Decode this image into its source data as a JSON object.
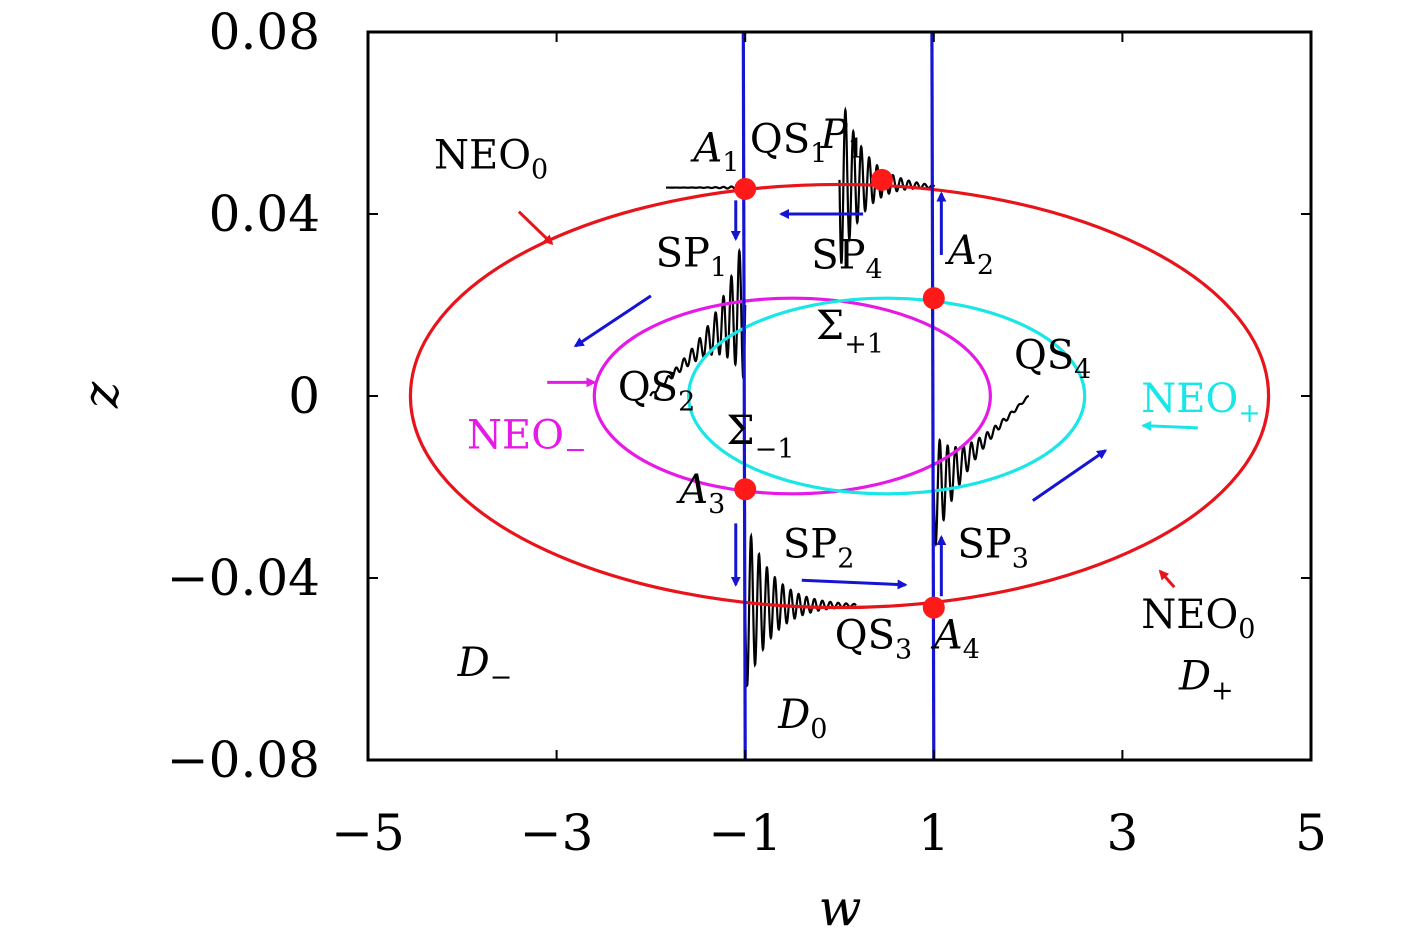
{
  "chart_data": {
    "type": "line",
    "xlabel": "w",
    "ylabel": "z",
    "xlim": [
      -5,
      5
    ],
    "ylim": [
      -0.08,
      0.08
    ],
    "xticks": [
      "−5",
      "−3",
      "−1",
      "1",
      "3",
      "5"
    ],
    "xtick_values": [
      -5,
      -3,
      -1,
      1,
      3,
      5
    ],
    "yticks": [
      "0.08",
      "0.04",
      "0",
      "−0.04",
      "−0.08"
    ],
    "ytick_values": [
      0.08,
      0.04,
      0,
      -0.04,
      -0.08
    ],
    "grid": false,
    "colors": {
      "neo0": "#e8141c",
      "neo_minus": "#e61ae6",
      "neo_plus": "#19e6e6",
      "switching": "#1414d2",
      "arrow": "#1414d2",
      "trajectory": "#000000",
      "point": "#ff1a1a"
    },
    "ellipses": [
      {
        "id": "NEO0",
        "cx": 0,
        "cy": 0,
        "rx": 4.55,
        "ry": 0.0465,
        "color": "#e8141c"
      },
      {
        "id": "NEO-",
        "cx": -0.5,
        "cy": 0,
        "rx": 2.1,
        "ry": 0.0215,
        "color": "#e61ae6"
      },
      {
        "id": "NEO+",
        "cx": 0.5,
        "cy": 0,
        "rx": 2.1,
        "ry": 0.0215,
        "color": "#19e6e6"
      }
    ],
    "switching_lines": [
      {
        "x_top": -1.02,
        "x_bottom": -1.0
      },
      {
        "x_top": 0.98,
        "x_bottom": 1.0
      }
    ],
    "points": [
      {
        "name": "A1",
        "w": -1.0,
        "z": 0.0455
      },
      {
        "name": "P1",
        "w": 0.45,
        "z": 0.0475
      },
      {
        "name": "A2",
        "w": 1.0,
        "z": 0.0215
      },
      {
        "name": "A3",
        "w": -1.0,
        "z": -0.0205
      },
      {
        "name": "A4",
        "w": 1.0,
        "z": -0.0465
      }
    ],
    "oscillations": [
      {
        "x0": -1.0,
        "dir": -1,
        "zs": 0.0458,
        "ze": 0.0458,
        "amp": 0.0005,
        "cycles": 10
      },
      {
        "x0": 0.0,
        "dir": 1,
        "zs": 0.0475,
        "ze": 0.046,
        "amp": 0.02,
        "cycles": 12
      },
      {
        "x0": -1.0,
        "dir": -1,
        "zs": 0.02,
        "ze": 0.0,
        "amp": 0.017,
        "cycles": 12
      },
      {
        "x0": 1.0,
        "dir": 1,
        "zs": -0.021,
        "ze": 0.0,
        "amp": 0.013,
        "cycles": 12
      },
      {
        "x0": -1.0,
        "dir": 1,
        "zs": -0.046,
        "ze": -0.046,
        "amp": 0.019,
        "cycles": 14
      }
    ],
    "arrows": [
      {
        "color": "#1414d2",
        "from": [
          -1.1,
          0.043
        ],
        "to": [
          -1.1,
          0.0345
        ]
      },
      {
        "color": "#1414d2",
        "from": [
          0.25,
          0.04
        ],
        "to": [
          -0.62,
          0.04
        ]
      },
      {
        "color": "#1414d2",
        "from": [
          1.08,
          0.031
        ],
        "to": [
          1.08,
          0.0445
        ]
      },
      {
        "color": "#1414d2",
        "from": [
          -2.0,
          0.022
        ],
        "to": [
          -2.8,
          0.011
        ]
      },
      {
        "color": "#1414d2",
        "from": [
          -1.1,
          -0.028
        ],
        "to": [
          -1.1,
          -0.0415
        ]
      },
      {
        "color": "#1414d2",
        "from": [
          -0.4,
          -0.0405
        ],
        "to": [
          0.7,
          -0.0415
        ]
      },
      {
        "color": "#1414d2",
        "from": [
          1.08,
          -0.044
        ],
        "to": [
          1.08,
          -0.031
        ]
      },
      {
        "color": "#1414d2",
        "from": [
          2.05,
          -0.023
        ],
        "to": [
          2.82,
          -0.012
        ]
      },
      {
        "color": "#e61ae6",
        "from": [
          -3.1,
          0.003
        ],
        "to": [
          -2.6,
          0.003
        ]
      },
      {
        "color": "#19e6e6",
        "from": [
          3.8,
          -0.007
        ],
        "to": [
          3.22,
          -0.0065
        ]
      },
      {
        "color": "#e8141c",
        "from": [
          -3.4,
          0.0405
        ],
        "to": [
          -3.05,
          0.0335
        ]
      },
      {
        "color": "#e8141c",
        "from": [
          3.55,
          -0.042
        ],
        "to": [
          3.4,
          -0.0385
        ]
      }
    ],
    "annotations": [
      {
        "text": "NEO",
        "sub": "0",
        "w": -4.3,
        "z": 0.05,
        "italic": false,
        "color": "#000000",
        "size": 40
      },
      {
        "text": "A",
        "sub": "1",
        "w": -1.55,
        "z": 0.0515,
        "italic": true,
        "color": "#000000",
        "size": 40
      },
      {
        "text": "QS",
        "sub": "1",
        "w": -0.95,
        "z": 0.0535,
        "italic": false,
        "color": "#000000",
        "size": 40
      },
      {
        "text": "P",
        "sub": "1",
        "w": -0.2,
        "z": 0.0545,
        "italic": true,
        "color": "#000000",
        "size": 40
      },
      {
        "text": "SP",
        "sub": "1",
        "w": -1.95,
        "z": 0.0285,
        "italic": false,
        "color": "#000000",
        "size": 40
      },
      {
        "text": "SP",
        "sub": "4",
        "w": -0.3,
        "z": 0.028,
        "italic": false,
        "color": "#000000",
        "size": 40
      },
      {
        "text": "A",
        "sub": "2",
        "w": 1.15,
        "z": 0.029,
        "italic": true,
        "color": "#000000",
        "size": 40
      },
      {
        "text": "Σ",
        "sub": "+1",
        "w": -0.25,
        "z": 0.0125,
        "italic": false,
        "color": "#000000",
        "size": 56
      },
      {
        "text": "QS",
        "sub": "4",
        "w": 1.85,
        "z": 0.006,
        "italic": false,
        "color": "#000000",
        "size": 40
      },
      {
        "text": "QS",
        "sub": "2",
        "w": -2.35,
        "z": -0.001,
        "italic": false,
        "color": "#000000",
        "size": 40
      },
      {
        "text": "NEO",
        "sub": "−",
        "w": -3.95,
        "z": -0.0115,
        "italic": false,
        "color": "#e61ae6",
        "size": 40
      },
      {
        "text": "Σ",
        "sub": "−1",
        "w": -1.2,
        "z": -0.0105,
        "italic": false,
        "color": "#000000",
        "size": 56
      },
      {
        "text": "NEO",
        "sub": "+",
        "w": 3.2,
        "z": -0.0035,
        "italic": false,
        "color": "#19e6e6",
        "size": 40
      },
      {
        "text": "A",
        "sub": "3",
        "w": -1.7,
        "z": -0.0235,
        "italic": true,
        "color": "#000000",
        "size": 40
      },
      {
        "text": "SP",
        "sub": "2",
        "w": -0.6,
        "z": -0.0355,
        "italic": false,
        "color": "#000000",
        "size": 40
      },
      {
        "text": "SP",
        "sub": "3",
        "w": 1.25,
        "z": -0.0355,
        "italic": false,
        "color": "#000000",
        "size": 40
      },
      {
        "text": "NEO",
        "sub": "0",
        "w": 3.2,
        "z": -0.051,
        "italic": false,
        "color": "#000000",
        "size": 40
      },
      {
        "text": "QS",
        "sub": "3",
        "w": -0.05,
        "z": -0.0555,
        "italic": false,
        "color": "#000000",
        "size": 40
      },
      {
        "text": "A",
        "sub": "4",
        "w": 1.0,
        "z": -0.0555,
        "italic": true,
        "color": "#000000",
        "size": 40
      },
      {
        "text": "D",
        "sub": "−",
        "w": -4.05,
        "z": -0.0615,
        "italic": true,
        "color": "#000000",
        "size": 40
      },
      {
        "text": "D",
        "sub": "+",
        "w": 3.6,
        "z": -0.0645,
        "italic": true,
        "color": "#000000",
        "size": 40
      },
      {
        "text": "D",
        "sub": "0",
        "w": -0.65,
        "z": -0.073,
        "italic": true,
        "color": "#000000",
        "size": 40
      }
    ]
  }
}
